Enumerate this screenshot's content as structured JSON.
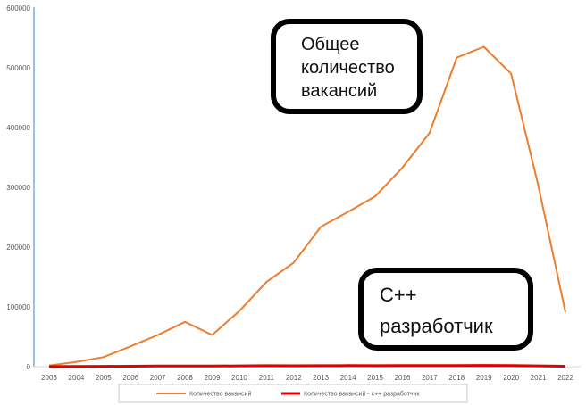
{
  "chart_data": {
    "type": "line",
    "title": "",
    "xlabel": "",
    "ylabel": "",
    "x": [
      "2003",
      "2004",
      "2005",
      "2006",
      "2007",
      "2008",
      "2009",
      "2010",
      "2011",
      "2012",
      "2013",
      "2014",
      "2015",
      "2016",
      "2017",
      "2018",
      "2019",
      "2020",
      "2021",
      "2022"
    ],
    "y_ticks": [
      "0",
      "100000",
      "200000",
      "300000",
      "400000",
      "500000",
      "600000"
    ],
    "ylim": [
      0,
      600000
    ],
    "grid": false,
    "legend_position": "bottom",
    "series": [
      {
        "name": "Количество вакансий",
        "color": "#ED7D31",
        "values": [
          2000,
          8000,
          16000,
          34000,
          53000,
          75000,
          53000,
          93000,
          142000,
          174000,
          234000,
          259000,
          285000,
          333000,
          391000,
          517000,
          535000,
          490000,
          303000,
          91000
        ]
      },
      {
        "name": "Количество вакансий - с++ разработчик",
        "color": "#E00000",
        "values": [
          200,
          400,
          600,
          800,
          1000,
          1200,
          1000,
          1300,
          1600,
          1500,
          1700,
          1800,
          1600,
          1800,
          1900,
          2000,
          2100,
          1900,
          1300,
          700
        ]
      }
    ],
    "annotations": [
      {
        "lines": [
          "Общее",
          "количество",
          "вакансий"
        ]
      },
      {
        "lines": [
          "С++",
          "разработчик"
        ]
      }
    ]
  }
}
